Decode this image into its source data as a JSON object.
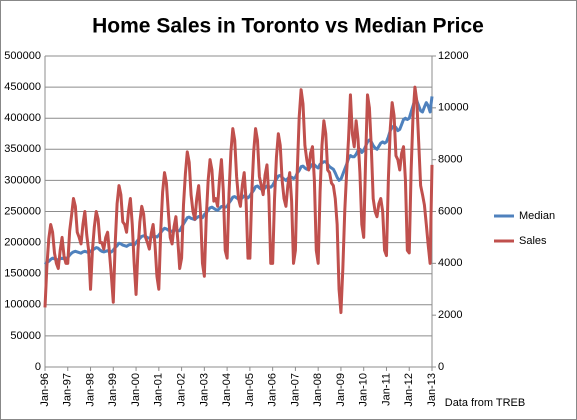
{
  "chart_data": {
    "type": "line",
    "title": "Home Sales in Toronto vs Median Price",
    "source": "Data from TREB",
    "legend": "right",
    "grid": true,
    "categories": [
      "Jan-96",
      null,
      null,
      null,
      null,
      null,
      null,
      null,
      null,
      null,
      null,
      null,
      "Jan-97",
      null,
      null,
      null,
      null,
      null,
      null,
      null,
      null,
      null,
      null,
      null,
      "Jan-98",
      null,
      null,
      null,
      null,
      null,
      null,
      null,
      null,
      null,
      null,
      null,
      "Jan-99",
      null,
      null,
      null,
      null,
      null,
      null,
      null,
      null,
      null,
      null,
      null,
      "Jan-00",
      null,
      null,
      null,
      null,
      null,
      null,
      null,
      null,
      null,
      null,
      null,
      "Jan-01",
      null,
      null,
      null,
      null,
      null,
      null,
      null,
      null,
      null,
      null,
      null,
      "Jan-02",
      null,
      null,
      null,
      null,
      null,
      null,
      null,
      null,
      null,
      null,
      null,
      "Jan-03",
      null,
      null,
      null,
      null,
      null,
      null,
      null,
      null,
      null,
      null,
      null,
      "Jan-04",
      null,
      null,
      null,
      null,
      null,
      null,
      null,
      null,
      null,
      null,
      null,
      "Jan-05",
      null,
      null,
      null,
      null,
      null,
      null,
      null,
      null,
      null,
      null,
      null,
      "Jan-06",
      null,
      null,
      null,
      null,
      null,
      null,
      null,
      null,
      null,
      null,
      null,
      "Jan-07",
      null,
      null,
      null,
      null,
      null,
      null,
      null,
      null,
      null,
      null,
      null,
      "Jan-08",
      null,
      null,
      null,
      null,
      null,
      null,
      null,
      null,
      null,
      null,
      null,
      "Jan-09",
      null,
      null,
      null,
      null,
      null,
      null,
      null,
      null,
      null,
      null,
      null,
      "Jan-10",
      null,
      null,
      null,
      null,
      null,
      null,
      null,
      null,
      null,
      null,
      null,
      "Jan-11",
      null,
      null,
      null,
      null,
      null,
      null,
      null,
      null,
      null,
      null,
      null,
      "Jan-12",
      null,
      null,
      null,
      null,
      null,
      null,
      null,
      null,
      null,
      null,
      null,
      "Jan-13"
    ],
    "ylim": [
      0,
      500000
    ],
    "yticks": [
      0,
      50000,
      100000,
      150000,
      200000,
      250000,
      300000,
      350000,
      400000,
      450000,
      500000
    ],
    "y2lim": [
      0,
      12000
    ],
    "y2ticks": [
      0,
      2000,
      4000,
      6000,
      8000,
      10000,
      12000
    ],
    "series": [
      {
        "name": "Median",
        "color": "#4f81bd",
        "values": [
          165000,
          168000,
          170000,
          173000,
          175000,
          174000,
          173000,
          172000,
          174000,
          175000,
          174000,
          174000,
          176000,
          180000,
          183000,
          185000,
          186000,
          185000,
          184000,
          183000,
          185000,
          186000,
          185000,
          184000,
          186000,
          188000,
          190000,
          192000,
          191000,
          188000,
          186000,
          185000,
          186000,
          187000,
          186000,
          185000,
          188000,
          192000,
          195000,
          199000,
          198000,
          196000,
          195000,
          194000,
          196000,
          197000,
          197000,
          196000,
          200000,
          204000,
          207000,
          210000,
          211000,
          210000,
          208000,
          207000,
          209000,
          210000,
          210000,
          209000,
          212000,
          216000,
          220000,
          223000,
          222000,
          220000,
          219000,
          218000,
          220000,
          220000,
          219000,
          219000,
          225000,
          230000,
          235000,
          240000,
          241000,
          239000,
          238000,
          237000,
          240000,
          242000,
          241000,
          240000,
          245000,
          248000,
          252000,
          256000,
          257000,
          255000,
          253000,
          252000,
          255000,
          258000,
          258000,
          257000,
          258000,
          264000,
          268000,
          273000,
          274000,
          272000,
          270000,
          270000,
          272000,
          275000,
          274000,
          272000,
          275000,
          280000,
          284000,
          290000,
          291000,
          288000,
          286000,
          285000,
          288000,
          291000,
          290000,
          289000,
          292000,
          298000,
          302000,
          307000,
          308000,
          305000,
          302000,
          300000,
          303000,
          306000,
          305000,
          303000,
          305000,
          312000,
          316000,
          322000,
          323000,
          320000,
          318000,
          318000,
          322000,
          326000,
          325000,
          322000,
          320000,
          326000,
          328000,
          330000,
          330000,
          326000,
          322000,
          320000,
          318000,
          312000,
          305000,
          300000,
          302000,
          310000,
          318000,
          326000,
          335000,
          340000,
          338000,
          338000,
          342000,
          348000,
          350000,
          345000,
          348000,
          355000,
          362000,
          365000,
          362000,
          356000,
          352000,
          350000,
          355000,
          360000,
          362000,
          360000,
          362000,
          370000,
          380000,
          385000,
          388000,
          385000,
          380000,
          382000,
          390000,
          398000,
          400000,
          398000,
          400000,
          410000,
          420000,
          430000,
          428000,
          420000,
          412000,
          410000,
          418000,
          425000,
          420000,
          410000,
          435000
        ]
      },
      {
        "name": "Sales",
        "color": "#c0504d",
        "axis": "y2",
        "values": [
          2300,
          3900,
          4950,
          5500,
          5200,
          4400,
          4000,
          3800,
          4500,
          5000,
          4300,
          4000,
          4000,
          5250,
          5850,
          6500,
          6200,
          5200,
          5000,
          4750,
          5500,
          6000,
          5100,
          4500,
          3000,
          4500,
          5400,
          6000,
          5700,
          4800,
          4800,
          4550,
          5000,
          5200,
          4400,
          3500,
          2500,
          4750,
          6300,
          7000,
          6650,
          5600,
          5500,
          5200,
          6000,
          6500,
          5500,
          4000,
          2800,
          4500,
          5600,
          6200,
          5900,
          5000,
          4800,
          4550,
          5150,
          5500,
          4700,
          3500,
          3000,
          5250,
          6750,
          7500,
          7100,
          6000,
          5000,
          4750,
          5400,
          5800,
          4900,
          3800,
          4200,
          6250,
          7450,
          8300,
          7900,
          6650,
          6000,
          5700,
          6500,
          7000,
          5950,
          4000,
          3500,
          5750,
          7200,
          8000,
          7600,
          6400,
          6500,
          6200,
          7250,
          8000,
          6800,
          4500,
          4200,
          6700,
          8300,
          9200,
          8750,
          7350,
          6500,
          6200,
          7000,
          7500,
          6400,
          4200,
          4200,
          6700,
          8300,
          9200,
          8750,
          7350,
          7000,
          6650,
          7400,
          7800,
          6600,
          4000,
          4000,
          6500,
          8100,
          9000,
          8550,
          7200,
          6500,
          6200,
          7000,
          7500,
          6400,
          4000,
          4500,
          7600,
          9650,
          10700,
          10150,
          8550,
          8000,
          7600,
          8250,
          8500,
          7200,
          4500,
          4000,
          6750,
          8550,
          9500,
          9000,
          7600,
          7500,
          7100,
          7000,
          6500,
          5500,
          3000,
          2100,
          3800,
          6000,
          7500,
          8800,
          10500,
          9000,
          8500,
          9500,
          8800,
          7500,
          5500,
          5000,
          8000,
          10500,
          10000,
          8500,
          6500,
          6000,
          5800,
          6300,
          6500,
          6000,
          4500,
          4300,
          7250,
          9200,
          10200,
          9700,
          8150,
          8000,
          7600,
          8250,
          8500,
          7200,
          4500,
          4400,
          7600,
          9700,
          10800,
          10250,
          8650,
          7000,
          6650,
          6250,
          5500,
          4700,
          4000,
          7800
        ]
      }
    ]
  }
}
